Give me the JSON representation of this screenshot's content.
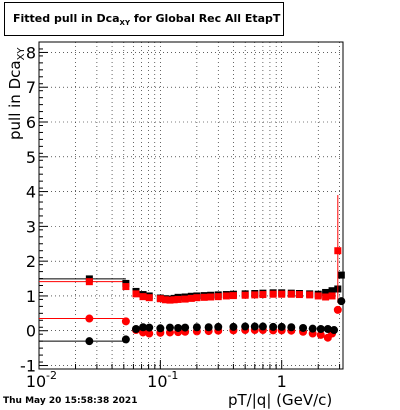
{
  "title": {
    "main": "Fitted pull in Dca",
    "sub": "XY",
    "rest": " for Global Rec All EtapT"
  },
  "timestamp": "Thu May 20 15:58:38 2021",
  "axes": {
    "ylabel_main": "pull in Dca",
    "ylabel_sub": "XY",
    "xlabel": "pT/|q| (GeV/c)"
  },
  "colors": {
    "red": "#ff0000",
    "black": "#000000",
    "grid": "#000000"
  },
  "chart_data": {
    "type": "scatter",
    "x_scale": "log",
    "xlim": [
      0.01,
      3.2
    ],
    "ylim": [
      -1.1,
      8.3
    ],
    "grid": true,
    "x_ticks": [
      {
        "value": 0.01,
        "label": "10",
        "exp": "-2"
      },
      {
        "value": 0.1,
        "label": "10",
        "exp": "-1"
      },
      {
        "value": 1,
        "label": "1",
        "exp": ""
      }
    ],
    "y_ticks": [
      -1,
      0,
      1,
      2,
      3,
      4,
      5,
      6,
      7,
      8
    ],
    "series": [
      {
        "color": "#000000",
        "marker": "square",
        "points": [
          [
            0.026,
            1.49
          ],
          [
            0.052,
            1.36
          ],
          [
            0.063,
            1.13
          ],
          [
            0.072,
            1.04
          ],
          [
            0.081,
            1.0
          ],
          [
            0.1,
            0.94
          ],
          [
            0.11,
            0.92
          ],
          [
            0.12,
            0.91
          ],
          [
            0.13,
            0.93
          ],
          [
            0.14,
            0.96
          ],
          [
            0.16,
            0.97
          ],
          [
            0.18,
            0.99
          ],
          [
            0.2,
            1.0
          ],
          [
            0.23,
            1.01
          ],
          [
            0.26,
            1.02
          ],
          [
            0.3,
            1.03
          ],
          [
            0.35,
            1.04
          ],
          [
            0.4,
            1.05
          ],
          [
            0.5,
            1.06
          ],
          [
            0.6,
            1.07
          ],
          [
            0.7,
            1.08
          ],
          [
            0.85,
            1.09
          ],
          [
            1.0,
            1.09
          ],
          [
            1.2,
            1.08
          ],
          [
            1.4,
            1.07
          ],
          [
            1.7,
            1.06
          ],
          [
            2.0,
            1.05
          ],
          [
            2.3,
            1.1
          ],
          [
            2.6,
            1.15
          ],
          [
            2.9,
            1.2
          ],
          [
            3.1,
            1.6
          ]
        ]
      },
      {
        "color": "#ff0000",
        "marker": "square",
        "points": [
          [
            0.026,
            1.41
          ],
          [
            0.052,
            1.27
          ],
          [
            0.063,
            1.06
          ],
          [
            0.072,
            0.98
          ],
          [
            0.081,
            0.95
          ],
          [
            0.1,
            0.92
          ],
          [
            0.11,
            0.89
          ],
          [
            0.12,
            0.88
          ],
          [
            0.13,
            0.89
          ],
          [
            0.14,
            0.9
          ],
          [
            0.16,
            0.91
          ],
          [
            0.18,
            0.93
          ],
          [
            0.2,
            0.95
          ],
          [
            0.23,
            0.96
          ],
          [
            0.26,
            0.97
          ],
          [
            0.3,
            0.98
          ],
          [
            0.35,
            1.0
          ],
          [
            0.4,
            1.01
          ],
          [
            0.5,
            1.02
          ],
          [
            0.6,
            1.03
          ],
          [
            0.7,
            1.04
          ],
          [
            0.85,
            1.05
          ],
          [
            1.0,
            1.05
          ],
          [
            1.2,
            1.05
          ],
          [
            1.4,
            1.04
          ],
          [
            1.7,
            1.03
          ],
          [
            2.0,
            1.0
          ],
          [
            2.3,
            0.97
          ],
          [
            2.6,
            1.0
          ],
          [
            2.9,
            2.3
          ]
        ],
        "err_index": 29,
        "err": [
          0.8,
          3.9
        ]
      },
      {
        "color": "#ff0000",
        "marker": "circle",
        "points": [
          [
            0.026,
            0.35
          ],
          [
            0.052,
            0.27
          ],
          [
            0.063,
            0.02
          ],
          [
            0.072,
            -0.05
          ],
          [
            0.081,
            -0.08
          ],
          [
            0.1,
            -0.06
          ],
          [
            0.12,
            -0.05
          ],
          [
            0.14,
            -0.04
          ],
          [
            0.16,
            -0.03
          ],
          [
            0.2,
            -0.02
          ],
          [
            0.25,
            -0.01
          ],
          [
            0.3,
            0.0
          ],
          [
            0.4,
            0.01
          ],
          [
            0.5,
            0.02
          ],
          [
            0.6,
            0.02
          ],
          [
            0.7,
            0.02
          ],
          [
            0.85,
            0.01
          ],
          [
            1.0,
            0.01
          ],
          [
            1.2,
            0.0
          ],
          [
            1.5,
            -0.03
          ],
          [
            1.8,
            -0.08
          ],
          [
            2.1,
            -0.12
          ],
          [
            2.4,
            -0.2
          ],
          [
            2.6,
            -0.08
          ],
          [
            2.9,
            0.6
          ]
        ]
      },
      {
        "color": "#000000",
        "marker": "circle",
        "points": [
          [
            0.026,
            -0.3
          ],
          [
            0.052,
            -0.25
          ],
          [
            0.063,
            0.05
          ],
          [
            0.072,
            0.1
          ],
          [
            0.081,
            0.09
          ],
          [
            0.1,
            0.07
          ],
          [
            0.12,
            0.09
          ],
          [
            0.14,
            0.08
          ],
          [
            0.16,
            0.09
          ],
          [
            0.2,
            0.1
          ],
          [
            0.25,
            0.1
          ],
          [
            0.3,
            0.11
          ],
          [
            0.4,
            0.11
          ],
          [
            0.5,
            0.12
          ],
          [
            0.6,
            0.12
          ],
          [
            0.7,
            0.12
          ],
          [
            0.85,
            0.11
          ],
          [
            1.0,
            0.11
          ],
          [
            1.2,
            0.1
          ],
          [
            1.5,
            0.08
          ],
          [
            1.8,
            0.06
          ],
          [
            2.1,
            0.05
          ],
          [
            2.4,
            0.05
          ],
          [
            2.7,
            0.02
          ],
          [
            3.1,
            0.85
          ]
        ]
      }
    ],
    "flat_lines": [
      {
        "color": "#000000",
        "y": 1.49,
        "x_range": [
          0.01,
          0.052
        ]
      },
      {
        "color": "#ff0000",
        "y": 1.41,
        "x_range": [
          0.01,
          0.052
        ]
      },
      {
        "color": "#ff0000",
        "y": 0.35,
        "x_range": [
          0.01,
          0.052
        ]
      },
      {
        "color": "#000000",
        "y": -0.3,
        "x_range": [
          0.01,
          0.052
        ]
      }
    ]
  }
}
